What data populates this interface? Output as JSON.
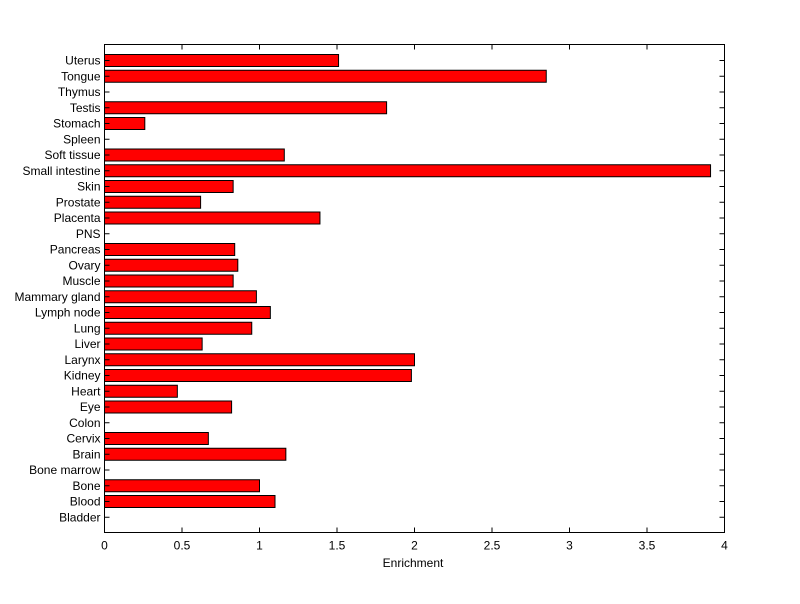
{
  "chart_data": {
    "type": "bar",
    "orientation": "horizontal",
    "title": "",
    "xlabel": "Enrichment",
    "ylabel": "",
    "xlim": [
      0,
      4
    ],
    "xticks": [
      "0",
      "0.5",
      "1",
      "1.5",
      "2",
      "2.5",
      "3",
      "3.5",
      "4"
    ],
    "grid": false,
    "legend": "none",
    "bar_color": "#ff0000",
    "bar_edge_color": "#000000",
    "categories": [
      "Uterus",
      "Tongue",
      "Thymus",
      "Testis",
      "Stomach",
      "Spleen",
      "Soft tissue",
      "Small intestine",
      "Skin",
      "Prostate",
      "Placenta",
      "PNS",
      "Pancreas",
      "Ovary",
      "Muscle",
      "Mammary gland",
      "Lymph node",
      "Lung",
      "Liver",
      "Larynx",
      "Kidney",
      "Heart",
      "Eye",
      "Colon",
      "Cervix",
      "Brain",
      "Bone marrow",
      "Bone",
      "Blood",
      "Bladder"
    ],
    "values": [
      1.51,
      2.85,
      0,
      1.82,
      0.26,
      0,
      1.16,
      3.91,
      0.83,
      0.62,
      1.39,
      0,
      0.84,
      0.86,
      0.83,
      0.98,
      1.07,
      0.95,
      0.63,
      2.0,
      1.98,
      0.47,
      0.82,
      0,
      0.67,
      1.17,
      0,
      1.0,
      1.1,
      0
    ]
  }
}
